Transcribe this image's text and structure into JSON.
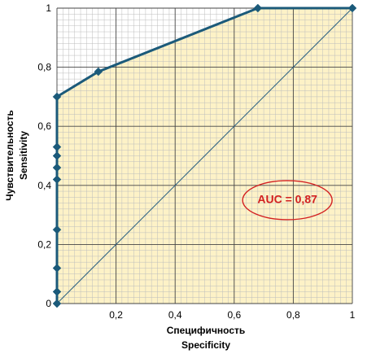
{
  "chart_data": {
    "type": "line",
    "title": "",
    "xlabel_line1": "Специфичность",
    "xlabel_line2": "Specificity",
    "ylabel_line1": "Чувствительность",
    "ylabel_line2": "Sensitivity",
    "xlim": [
      0,
      1
    ],
    "ylim": [
      0,
      1
    ],
    "x_ticks": [
      0,
      0.2,
      0.4,
      0.6,
      0.8,
      1
    ],
    "x_tick_labels": [
      "0",
      "0,2",
      "0,4",
      "0,6",
      "0,8",
      "1"
    ],
    "y_ticks": [
      0,
      0.2,
      0.4,
      0.6,
      0.8,
      1
    ],
    "y_tick_labels": [
      "0",
      "0,2",
      "0,4",
      "0,6",
      "0,8",
      "1"
    ],
    "grid": "on",
    "series": [
      {
        "values": [
          [
            0,
            0
          ],
          [
            0,
            0.04
          ],
          [
            0,
            0.12
          ],
          [
            0,
            0.25
          ],
          [
            0,
            0.42
          ],
          [
            0,
            0.46
          ],
          [
            0,
            0.5
          ],
          [
            0,
            0.53
          ],
          [
            0,
            0.7
          ],
          [
            0.14,
            0.785
          ],
          [
            0.68,
            1
          ],
          [
            1,
            1
          ]
        ]
      }
    ],
    "reference_line": [
      [
        0,
        0
      ],
      [
        1,
        1
      ]
    ],
    "annotation": {
      "text": "AUC = 0,87",
      "x": 0.78,
      "y": 0.35
    },
    "colors": {
      "roc_line": "#1b5a7a",
      "marker": "#1b5a7a",
      "reference_line": "#2a5f80",
      "area_fill": "#fdf2c7",
      "minor_grid": "#bdbdbd",
      "major_grid": "#444444",
      "auc": "#d32020"
    }
  }
}
